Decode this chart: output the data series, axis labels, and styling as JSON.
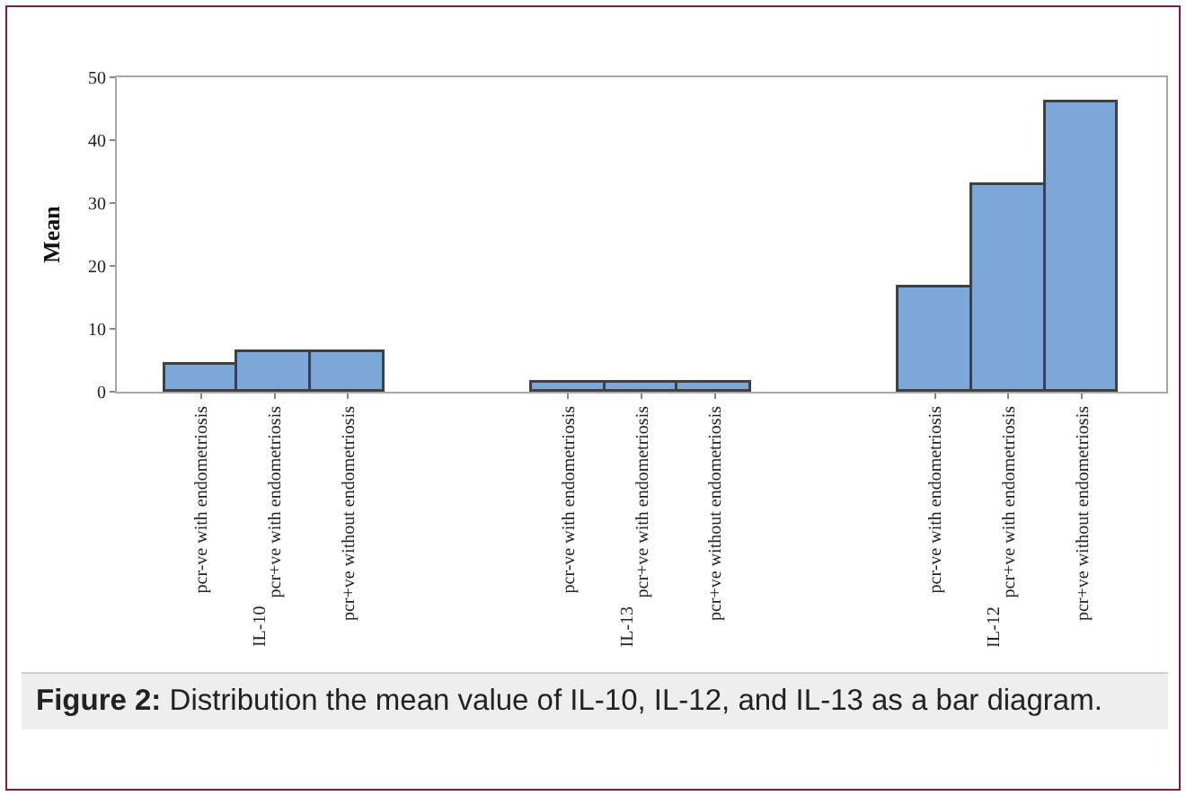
{
  "chart_data": {
    "type": "bar",
    "ylabel": "Mean",
    "categories": [
      "pcr-ve with endometriosis",
      "pcr+ve with endometriosis",
      "pcr+ve without endometriosis",
      null,
      null,
      "pcr-ve with endometriosis",
      "pcr+ve with endometriosis",
      "pcr+ve without endometriosis",
      null,
      null,
      "pcr-ve with endometriosis",
      "pcr+ve with endometriosis",
      "pcr+ve without endometriosis"
    ],
    "values": [
      4.4,
      6.3,
      6.3,
      null,
      null,
      1.4,
      1.4,
      1.4,
      null,
      null,
      16.7,
      33,
      46.1
    ],
    "color": "#7ba7d9",
    "ylim": [
      0,
      50
    ],
    "yticks": [
      0,
      10,
      20,
      30,
      40,
      50
    ],
    "annotations": [
      "IL-10",
      "IL-13",
      "IL-12",
      "Figure 2: Distribution the mean value of IL-10, IL-12, and IL-13 as a bar diagram."
    ]
  }
}
